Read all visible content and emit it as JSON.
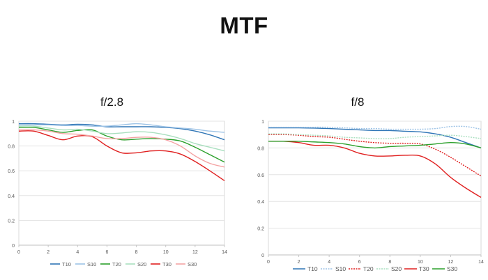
{
  "title": "MTF",
  "chart_data": [
    {
      "type": "line",
      "title": "f/2.8",
      "xlim": [
        0,
        14
      ],
      "ylim": [
        0,
        1
      ],
      "xticks": [
        0,
        2,
        4,
        6,
        8,
        10,
        12,
        14
      ],
      "yticks": [
        0,
        0.2,
        0.4,
        0.6,
        0.8,
        1
      ],
      "grid": true,
      "legend": "bottom",
      "series": [
        {
          "name": "T10",
          "color": "#2e75b6",
          "dash": "solid",
          "x": [
            0,
            1,
            2,
            3,
            4,
            5,
            6,
            7,
            8,
            9,
            10,
            11,
            12,
            13,
            14
          ],
          "values": [
            0.98,
            0.98,
            0.975,
            0.97,
            0.975,
            0.97,
            0.955,
            0.955,
            0.955,
            0.955,
            0.95,
            0.94,
            0.92,
            0.89,
            0.85
          ]
        },
        {
          "name": "S10",
          "color": "#9dc3e6",
          "dash": "solid",
          "x": [
            0,
            1,
            2,
            3,
            4,
            5,
            6,
            7,
            8,
            9,
            10,
            11,
            12,
            13,
            14
          ],
          "values": [
            0.97,
            0.97,
            0.97,
            0.965,
            0.965,
            0.96,
            0.96,
            0.97,
            0.98,
            0.97,
            0.955,
            0.945,
            0.935,
            0.92,
            0.91
          ]
        },
        {
          "name": "T20",
          "color": "#2ca02c",
          "dash": "solid",
          "x": [
            0,
            1,
            2,
            3,
            4,
            5,
            6,
            7,
            8,
            9,
            10,
            11,
            12,
            13,
            14
          ],
          "values": [
            0.95,
            0.95,
            0.93,
            0.91,
            0.925,
            0.93,
            0.88,
            0.85,
            0.855,
            0.86,
            0.855,
            0.84,
            0.79,
            0.73,
            0.67
          ]
        },
        {
          "name": "S20",
          "color": "#a9dfbf",
          "dash": "solid",
          "x": [
            0,
            1,
            2,
            3,
            4,
            5,
            6,
            7,
            8,
            9,
            10,
            11,
            12,
            13,
            14
          ],
          "values": [
            0.96,
            0.96,
            0.945,
            0.93,
            0.935,
            0.92,
            0.9,
            0.905,
            0.915,
            0.91,
            0.89,
            0.86,
            0.82,
            0.79,
            0.76
          ]
        },
        {
          "name": "T30",
          "color": "#e02020",
          "dash": "solid",
          "x": [
            0,
            1,
            2,
            3,
            4,
            5,
            6,
            7,
            8,
            9,
            10,
            11,
            12,
            13,
            14
          ],
          "values": [
            0.92,
            0.92,
            0.885,
            0.85,
            0.88,
            0.875,
            0.8,
            0.745,
            0.745,
            0.76,
            0.76,
            0.735,
            0.675,
            0.6,
            0.52
          ]
        },
        {
          "name": "S30",
          "color": "#f4a3a3",
          "dash": "solid",
          "x": [
            0,
            1,
            2,
            3,
            4,
            5,
            6,
            7,
            8,
            9,
            10,
            11,
            12,
            13,
            14
          ],
          "values": [
            0.93,
            0.93,
            0.92,
            0.9,
            0.895,
            0.88,
            0.86,
            0.86,
            0.87,
            0.87,
            0.85,
            0.8,
            0.72,
            0.66,
            0.63
          ]
        }
      ]
    },
    {
      "type": "line",
      "title": "f/8",
      "xlim": [
        0,
        14
      ],
      "ylim": [
        0,
        1
      ],
      "xticks": [
        0,
        2,
        4,
        6,
        8,
        10,
        12,
        14
      ],
      "yticks": [
        0,
        0.2,
        0.4,
        0.6,
        0.8,
        1
      ],
      "grid": true,
      "legend": "bottom",
      "series": [
        {
          "name": "T10",
          "color": "#2e75b6",
          "dash": "solid",
          "x": [
            0,
            1,
            2,
            3,
            4,
            5,
            6,
            7,
            8,
            9,
            10,
            11,
            12,
            13,
            14
          ],
          "values": [
            0.95,
            0.95,
            0.95,
            0.948,
            0.945,
            0.94,
            0.935,
            0.93,
            0.93,
            0.925,
            0.92,
            0.905,
            0.88,
            0.84,
            0.8
          ]
        },
        {
          "name": "S10",
          "color": "#9dc3e6",
          "dash": "dotted",
          "x": [
            0,
            1,
            2,
            3,
            4,
            5,
            6,
            7,
            8,
            9,
            10,
            11,
            12,
            13,
            14
          ],
          "values": [
            0.955,
            0.955,
            0.955,
            0.955,
            0.955,
            0.95,
            0.945,
            0.945,
            0.94,
            0.94,
            0.94,
            0.945,
            0.96,
            0.96,
            0.94
          ]
        },
        {
          "name": "T20",
          "color": "#e02020",
          "dash": "dotted",
          "x": [
            0,
            1,
            2,
            3,
            4,
            5,
            6,
            7,
            8,
            9,
            10,
            11,
            12,
            13,
            14
          ],
          "values": [
            0.9,
            0.9,
            0.895,
            0.885,
            0.88,
            0.865,
            0.85,
            0.84,
            0.835,
            0.835,
            0.83,
            0.79,
            0.73,
            0.66,
            0.59
          ]
        },
        {
          "name": "S20",
          "color": "#a9dfbf",
          "dash": "dotted",
          "x": [
            0,
            1,
            2,
            3,
            4,
            5,
            6,
            7,
            8,
            9,
            10,
            11,
            12,
            13,
            14
          ],
          "values": [
            0.905,
            0.905,
            0.9,
            0.895,
            0.89,
            0.88,
            0.875,
            0.87,
            0.87,
            0.88,
            0.885,
            0.89,
            0.895,
            0.885,
            0.87
          ]
        },
        {
          "name": "T30",
          "color": "#e02020",
          "dash": "solid",
          "x": [
            0,
            1,
            2,
            3,
            4,
            5,
            6,
            7,
            8,
            9,
            10,
            11,
            12,
            13,
            14
          ],
          "values": [
            0.85,
            0.85,
            0.84,
            0.82,
            0.82,
            0.8,
            0.76,
            0.74,
            0.74,
            0.745,
            0.74,
            0.68,
            0.58,
            0.5,
            0.43
          ]
        },
        {
          "name": "S30",
          "color": "#2ca02c",
          "dash": "solid",
          "x": [
            0,
            1,
            2,
            3,
            4,
            5,
            6,
            7,
            8,
            9,
            10,
            11,
            12,
            13,
            14
          ],
          "values": [
            0.85,
            0.85,
            0.85,
            0.845,
            0.84,
            0.83,
            0.81,
            0.8,
            0.81,
            0.815,
            0.82,
            0.83,
            0.84,
            0.83,
            0.8
          ]
        }
      ]
    }
  ]
}
